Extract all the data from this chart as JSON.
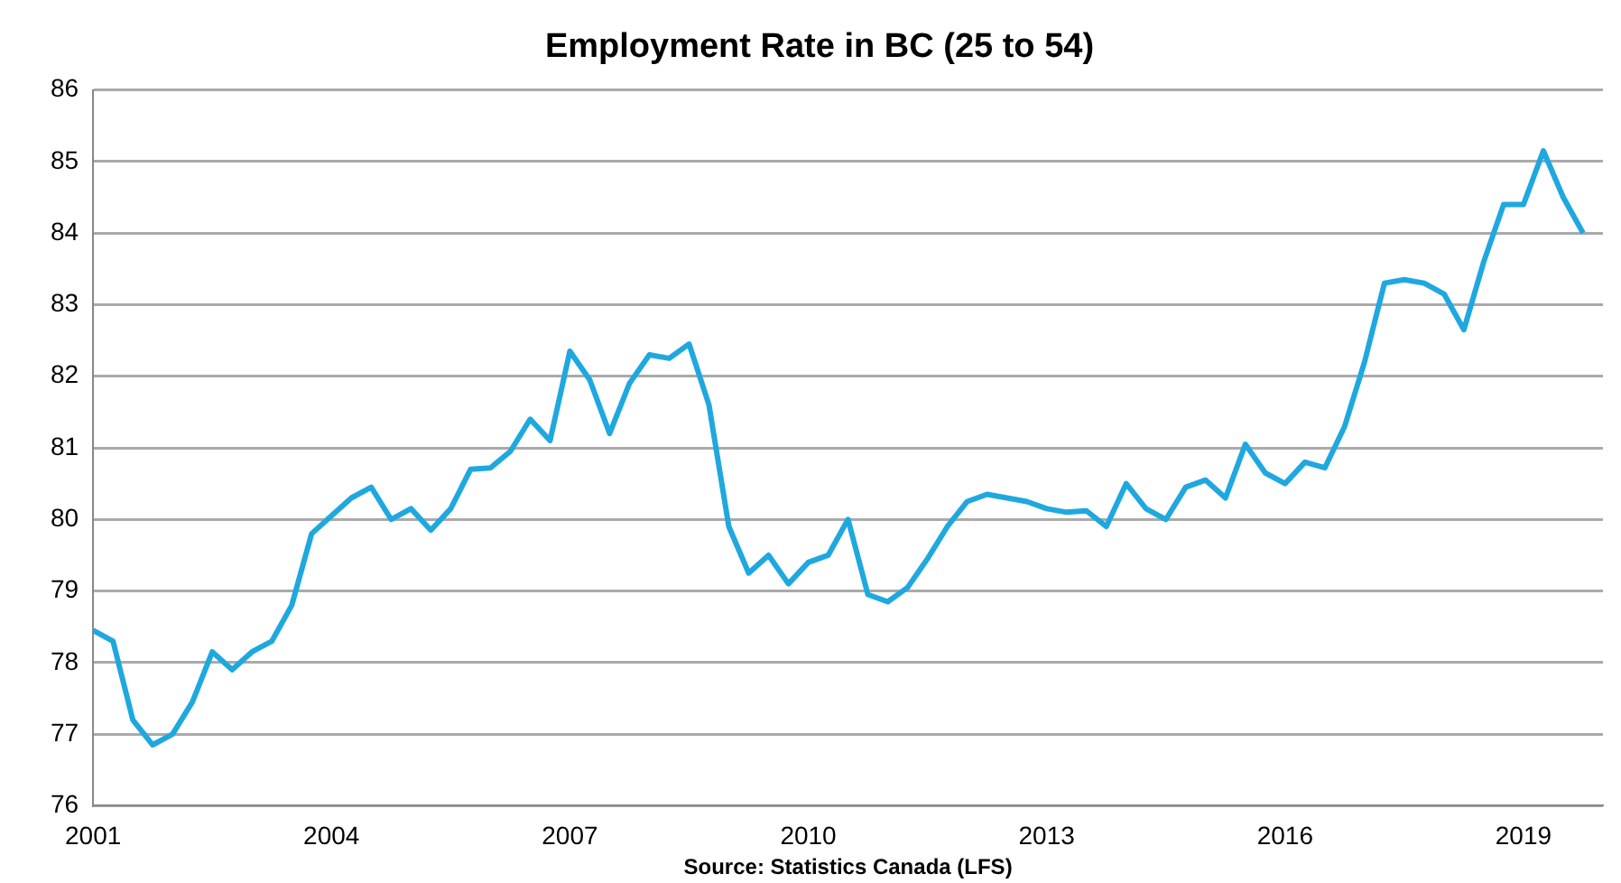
{
  "chart_data": {
    "type": "line",
    "title": "Employment Rate in BC (25 to 54)",
    "annotations": [
      "Source: Statistics Canada (LFS)"
    ],
    "x": [
      2001,
      2001.25,
      2001.5,
      2001.75,
      2002,
      2002.25,
      2002.5,
      2002.75,
      2003,
      2003.25,
      2003.5,
      2003.75,
      2004,
      2004.25,
      2004.5,
      2004.75,
      2005,
      2005.25,
      2005.5,
      2005.75,
      2006,
      2006.25,
      2006.5,
      2006.75,
      2007,
      2007.25,
      2007.5,
      2007.75,
      2008,
      2008.25,
      2008.5,
      2008.75,
      2009,
      2009.25,
      2009.5,
      2009.75,
      2010,
      2010.25,
      2010.5,
      2010.75,
      2011,
      2011.25,
      2011.5,
      2011.75,
      2012,
      2012.25,
      2012.5,
      2012.75,
      2013,
      2013.25,
      2013.5,
      2013.75,
      2014,
      2014.25,
      2014.5,
      2014.75,
      2015,
      2015.25,
      2015.5,
      2015.75,
      2016,
      2016.25,
      2016.5,
      2016.75,
      2017,
      2017.25,
      2017.5,
      2017.75,
      2018,
      2018.25,
      2018.5,
      2018.75,
      2019,
      2019.25,
      2019.5,
      2019.75
    ],
    "series": [
      {
        "color": "#1fa8e0",
        "values": [
          78.45,
          78.3,
          77.2,
          76.85,
          77.0,
          77.45,
          78.15,
          77.9,
          78.15,
          78.3,
          78.8,
          79.8,
          80.05,
          80.3,
          80.45,
          80.0,
          80.15,
          79.85,
          80.15,
          80.7,
          80.72,
          80.95,
          81.4,
          81.1,
          82.35,
          81.95,
          81.2,
          81.9,
          82.3,
          82.25,
          82.45,
          81.6,
          79.9,
          79.25,
          79.5,
          79.1,
          79.4,
          79.5,
          80.0,
          78.95,
          78.85,
          79.05,
          79.45,
          79.9,
          80.25,
          80.35,
          80.3,
          80.25,
          80.15,
          80.1,
          80.12,
          79.9,
          80.5,
          80.15,
          80.0,
          80.45,
          80.55,
          80.3,
          81.05,
          80.65,
          80.5,
          80.8,
          80.72,
          81.3,
          82.2,
          83.3,
          83.35,
          83.3,
          83.15,
          82.65,
          83.6,
          84.4,
          84.4,
          85.15,
          84.5,
          84.0
        ]
      }
    ],
    "xlim": [
      2001,
      2020
    ],
    "xticks": [
      2001,
      2004,
      2007,
      2010,
      2013,
      2016,
      2019
    ],
    "ylim": [
      76,
      86
    ],
    "yticks": [
      76,
      77,
      78,
      79,
      80,
      81,
      82,
      83,
      84,
      85,
      86
    ],
    "grid": "y",
    "legend": false,
    "marker": "none",
    "line_style": "solid"
  }
}
